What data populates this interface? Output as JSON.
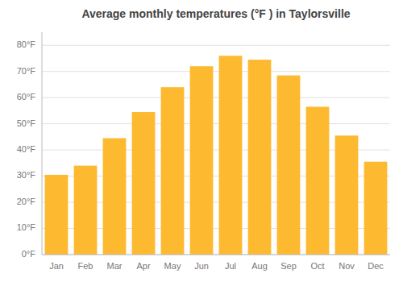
{
  "chart_data": {
    "type": "bar",
    "title": "Average monthly temperatures (°F ) in Taylorsville",
    "categories": [
      "Jan",
      "Feb",
      "Mar",
      "Apr",
      "May",
      "Jun",
      "Jul",
      "Aug",
      "Sep",
      "Oct",
      "Nov",
      "Dec"
    ],
    "values": [
      30.5,
      34.0,
      44.5,
      54.5,
      64.0,
      72.0,
      76.0,
      74.5,
      68.5,
      56.5,
      45.5,
      35.5
    ],
    "color": "#FDBA30",
    "ylim": [
      0,
      85
    ],
    "yticks": [
      {
        "value": 0,
        "label": "0°F"
      },
      {
        "value": 10,
        "label": "10°F"
      },
      {
        "value": 20,
        "label": "20°F"
      },
      {
        "value": 30,
        "label": "30°F"
      },
      {
        "value": 40,
        "label": "40°F"
      },
      {
        "value": 50,
        "label": "50°F"
      },
      {
        "value": 60,
        "label": "60°F"
      },
      {
        "value": 70,
        "label": "70°F"
      },
      {
        "value": 80,
        "label": "80°F"
      }
    ],
    "grid": true
  }
}
